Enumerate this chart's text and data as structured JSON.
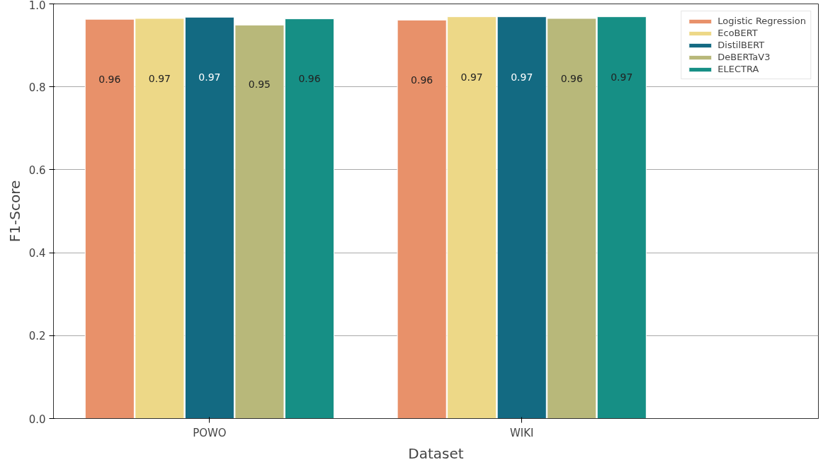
{
  "chart_data": {
    "type": "bar",
    "xlabel": "Dataset",
    "ylabel": "F1-Score",
    "categories": [
      "POWO",
      "WIKI"
    ],
    "ylim": [
      0,
      1.0
    ],
    "yticks": [
      {
        "value": 0,
        "label": "0.0"
      },
      0.2,
      0.4,
      0.6,
      0.8,
      {
        "value": 1.0,
        "label": "1.0"
      }
    ],
    "grid": "y",
    "legend": "top right",
    "series": [
      {
        "name": "Logistic Regression",
        "color": "#e8916a",
        "values": [
          0.963,
          0.961
        ],
        "value_labels": [
          "0.96",
          "0.96"
        ]
      },
      {
        "name": "EcoBERT",
        "color": "#edd887",
        "values": [
          0.965,
          0.969
        ],
        "value_labels": [
          "0.97",
          "0.97"
        ]
      },
      {
        "name": "DistilBERT",
        "color": "#136a82",
        "values": [
          0.968,
          0.969
        ],
        "value_labels": [
          "0.97",
          "0.97"
        ]
      },
      {
        "name": "DeBERTaV3",
        "color": "#b8b87a",
        "values": [
          0.949,
          0.965
        ],
        "value_labels": [
          "0.95",
          "0.96"
        ]
      },
      {
        "name": "ELECTRA",
        "color": "#168f85",
        "values": [
          0.964,
          0.969
        ],
        "value_labels": [
          "0.96",
          "0.97"
        ]
      }
    ]
  }
}
